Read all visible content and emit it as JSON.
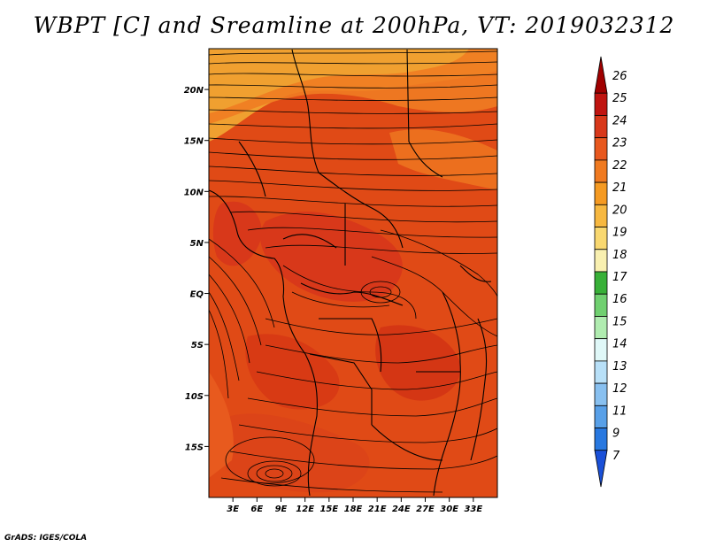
{
  "title": "WBPT [C] and Sreamline at 200hPa, VT: 2019032312",
  "footer": "GrADS: IGES/COLA",
  "map": {
    "lon_range": [
      0,
      36
    ],
    "lat_range": [
      -20,
      24
    ],
    "lat_ticks": [
      "20N",
      "15N",
      "10N",
      "5N",
      "EQ",
      "5S",
      "10S",
      "15S"
    ],
    "lat_tick_values": [
      20,
      15,
      10,
      5,
      0,
      -5,
      -10,
      -15
    ],
    "lon_ticks": [
      "3E",
      "6E",
      "9E",
      "12E",
      "15E",
      "18E",
      "21E",
      "24E",
      "27E",
      "30E",
      "33E"
    ],
    "lon_tick_values": [
      3,
      6,
      9,
      12,
      15,
      18,
      21,
      24,
      27,
      30,
      33
    ],
    "field_colors": {
      "t21": "#f0a030",
      "t22": "#f08020",
      "t23": "#e8561a",
      "t24": "#d83a14"
    }
  },
  "colorbar": {
    "labels": [
      "26",
      "25",
      "24",
      "23",
      "22",
      "21",
      "20",
      "19",
      "18",
      "17",
      "16",
      "15",
      "14",
      "13",
      "12",
      "11",
      "9",
      "7"
    ],
    "colors": [
      "#a00000",
      "#c01410",
      "#d8381a",
      "#e8581e",
      "#f07a20",
      "#f59a22",
      "#f7b840",
      "#f9d870",
      "#f9f0b0",
      "#38b038",
      "#70d070",
      "#b0ecb0",
      "#e0f8f8",
      "#b8e0f8",
      "#88c0f0",
      "#58a0e8",
      "#2878e0",
      "#1a50d8"
    ]
  }
}
